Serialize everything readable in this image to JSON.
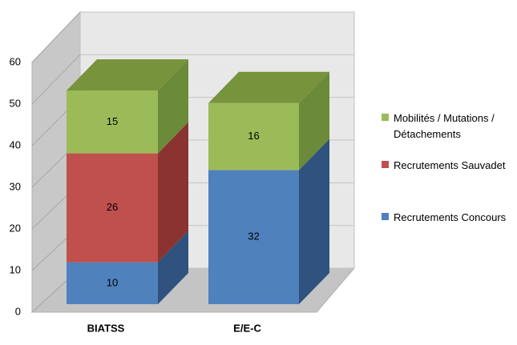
{
  "chart_data": {
    "type": "bar3d_stacked",
    "categories": [
      "BIATSS",
      "E/E-C"
    ],
    "series": [
      {
        "name": "Recrutements Concours",
        "color": "#4f81bd",
        "side": "#2f527e",
        "values": [
          10,
          32
        ]
      },
      {
        "name": "Recrutements Sauvadet",
        "color": "#c0504d",
        "side": "#8a3331",
        "values": [
          26,
          null
        ]
      },
      {
        "name": "Mobilités / Mutations / Détachements",
        "color": "#9bbb59",
        "side": "#6b8a3a",
        "top": "#77933c",
        "values": [
          15,
          16
        ]
      }
    ],
    "ylim": [
      0,
      60
    ],
    "yticks": [
      0,
      10,
      20,
      30,
      40,
      50,
      60
    ],
    "grid": true
  }
}
